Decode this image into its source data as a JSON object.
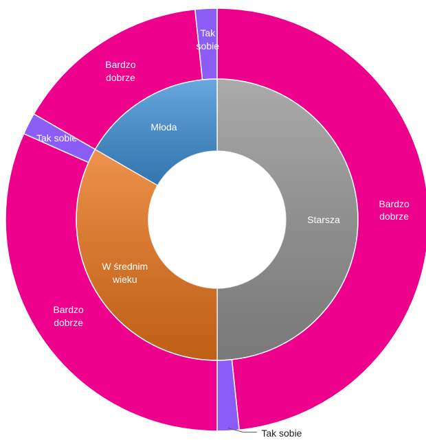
{
  "chart_data": {
    "type": "sunburst",
    "series": [
      {
        "name": "Starsza",
        "color": "#939393",
        "value": 30,
        "children": [
          {
            "name": "Bardzo dobrze",
            "color": "#ec008c",
            "value": 29
          },
          {
            "name": "Tak sobie",
            "color": "#8b5cf6",
            "value": 1
          }
        ]
      },
      {
        "name": "W średnim wieku",
        "color": "#e9741a",
        "value": 20,
        "children": [
          {
            "name": "Bardzo dobrze",
            "color": "#ec008c",
            "value": 19
          },
          {
            "name": "Tak sobie",
            "color": "#8b5cf6",
            "value": 1
          }
        ]
      },
      {
        "name": "Młoda",
        "color": "#3e8fd6",
        "value": 10,
        "children": [
          {
            "name": "Bardzo dobrze",
            "color": "#ec008c",
            "value": 9
          },
          {
            "name": "Tak sobie",
            "color": "#8b5cf6",
            "value": 1
          }
        ]
      }
    ]
  }
}
